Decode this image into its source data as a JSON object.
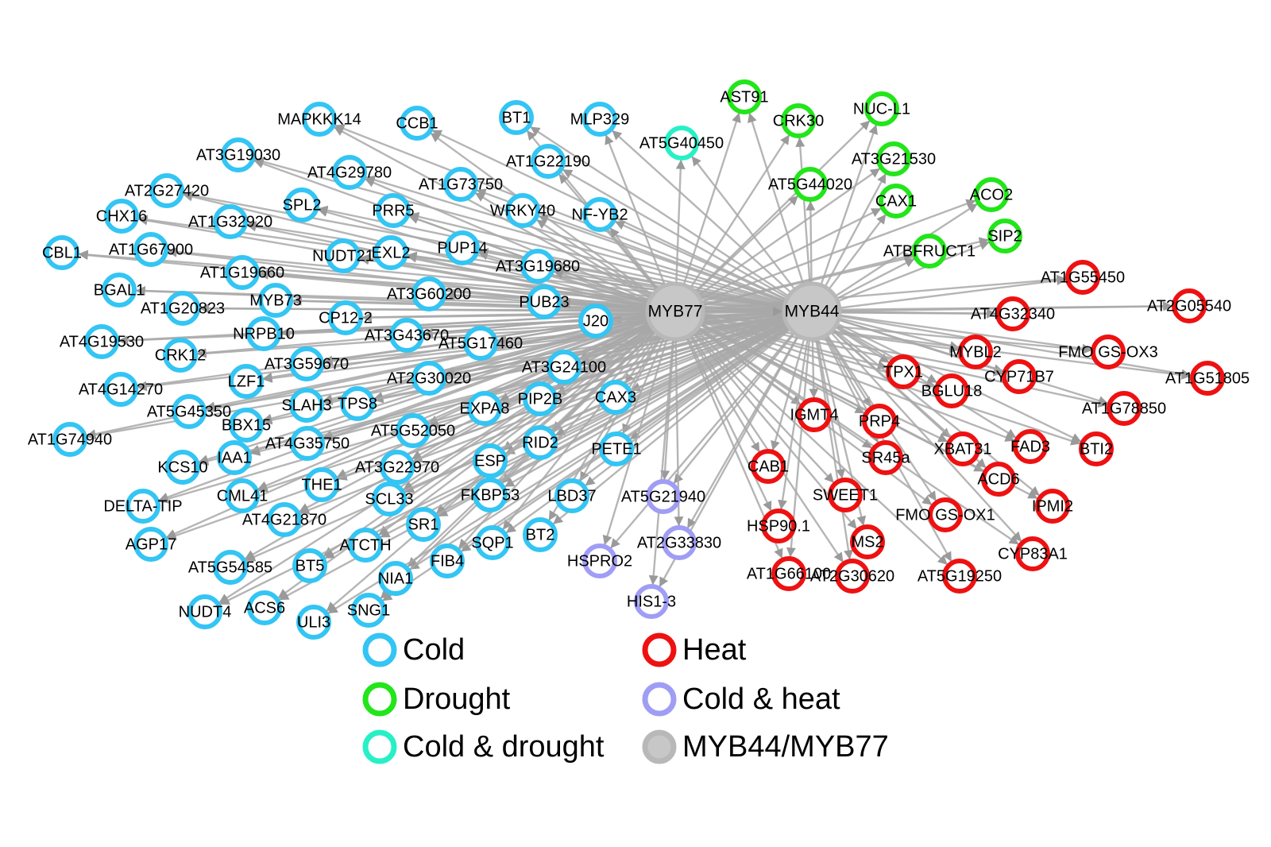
{
  "colors": {
    "Cold": "#33c5f3",
    "Drought": "#22e51a",
    "Cold & drought": "#27f0c6",
    "Heat": "#ee1111",
    "Cold & heat": "#a09df5",
    "MYB44/MYB77": "#c7c7c7",
    "edge": "#a8a8a8"
  },
  "hubs": [
    {
      "id": "MYB77",
      "label": "MYB77"
    },
    {
      "id": "MYB44",
      "label": "MYB44"
    }
  ],
  "legend": [
    {
      "label": "Cold",
      "category": "Cold"
    },
    {
      "label": "Heat",
      "category": "Heat"
    },
    {
      "label": "Drought",
      "category": "Drought"
    },
    {
      "label": "Cold & heat",
      "category": "Cold & heat"
    },
    {
      "label": "Cold & drought",
      "category": "Cold & drought"
    },
    {
      "label": "MYB44/MYB77",
      "category": "MYB44/MYB77"
    }
  ],
  "nodes": [
    {
      "label": "MAPKKK14",
      "category": "Cold"
    },
    {
      "label": "CCB1",
      "category": "Cold"
    },
    {
      "label": "BT1",
      "category": "Cold"
    },
    {
      "label": "MLP329",
      "category": "Cold"
    },
    {
      "label": "AT3G19030",
      "category": "Cold"
    },
    {
      "label": "AT4G29780",
      "category": "Cold"
    },
    {
      "label": "AT1G22190",
      "category": "Cold"
    },
    {
      "label": "AT1G73750",
      "category": "Cold"
    },
    {
      "label": "AT2G27420",
      "category": "Cold"
    },
    {
      "label": "CHX16",
      "category": "Cold"
    },
    {
      "label": "SPL2",
      "category": "Cold"
    },
    {
      "label": "PRR5",
      "category": "Cold"
    },
    {
      "label": "WRKY40",
      "category": "Cold"
    },
    {
      "label": "NF-YB2",
      "category": "Cold"
    },
    {
      "label": "AT1G32920",
      "category": "Cold"
    },
    {
      "label": "CBL1",
      "category": "Cold"
    },
    {
      "label": "AT1G67900",
      "category": "Cold"
    },
    {
      "label": "NUDT21",
      "category": "Cold"
    },
    {
      "label": "EXL2",
      "category": "Cold"
    },
    {
      "label": "PUP14",
      "category": "Cold"
    },
    {
      "label": "AT1G19660",
      "category": "Cold"
    },
    {
      "label": "AT3G19680",
      "category": "Cold"
    },
    {
      "label": "BGAL1",
      "category": "Cold"
    },
    {
      "label": "MYB73",
      "category": "Cold"
    },
    {
      "label": "AT3G60200",
      "category": "Cold"
    },
    {
      "label": "PUB23",
      "category": "Cold"
    },
    {
      "label": "AT1G20823",
      "category": "Cold"
    },
    {
      "label": "CP12-2",
      "category": "Cold"
    },
    {
      "label": "J20",
      "category": "Cold"
    },
    {
      "label": "AT4G19530",
      "category": "Cold"
    },
    {
      "label": "NRPB10",
      "category": "Cold"
    },
    {
      "label": "AT3G43670",
      "category": "Cold"
    },
    {
      "label": "CRK12",
      "category": "Cold"
    },
    {
      "label": "AT5G17460",
      "category": "Cold"
    },
    {
      "label": "AT3G59670",
      "category": "Cold"
    },
    {
      "label": "AT3G24100",
      "category": "Cold"
    },
    {
      "label": "AT4G14270",
      "category": "Cold"
    },
    {
      "label": "LZF1",
      "category": "Cold"
    },
    {
      "label": "AT2G30020",
      "category": "Cold"
    },
    {
      "label": "AT5G45350",
      "category": "Cold"
    },
    {
      "label": "SLAH3",
      "category": "Cold"
    },
    {
      "label": "TPS8",
      "category": "Cold"
    },
    {
      "label": "PIP2B",
      "category": "Cold"
    },
    {
      "label": "CAX3",
      "category": "Cold"
    },
    {
      "label": "EXPA8",
      "category": "Cold"
    },
    {
      "label": "BBX15",
      "category": "Cold"
    },
    {
      "label": "AT1G74940",
      "category": "Cold"
    },
    {
      "label": "AT5G52050",
      "category": "Cold"
    },
    {
      "label": "AT4G35750",
      "category": "Cold"
    },
    {
      "label": "RID2",
      "category": "Cold"
    },
    {
      "label": "PETE1",
      "category": "Cold"
    },
    {
      "label": "IAA1",
      "category": "Cold"
    },
    {
      "label": "KCS10",
      "category": "Cold"
    },
    {
      "label": "AT3G22970",
      "category": "Cold"
    },
    {
      "label": "ESP",
      "category": "Cold"
    },
    {
      "label": "THE1",
      "category": "Cold"
    },
    {
      "label": "CML41",
      "category": "Cold"
    },
    {
      "label": "DELTA-TIP",
      "category": "Cold"
    },
    {
      "label": "SCL33",
      "category": "Cold"
    },
    {
      "label": "FKBP53",
      "category": "Cold"
    },
    {
      "label": "LBD37",
      "category": "Cold"
    },
    {
      "label": "AT4G21870",
      "category": "Cold"
    },
    {
      "label": "SR1",
      "category": "Cold"
    },
    {
      "label": "AGP17",
      "category": "Cold"
    },
    {
      "label": "ATCTH",
      "category": "Cold"
    },
    {
      "label": "SQP1",
      "category": "Cold"
    },
    {
      "label": "BT2",
      "category": "Cold"
    },
    {
      "label": "AT5G54585",
      "category": "Cold"
    },
    {
      "label": "BT5",
      "category": "Cold"
    },
    {
      "label": "FIB4",
      "category": "Cold"
    },
    {
      "label": "NIA1",
      "category": "Cold"
    },
    {
      "label": "NUDT4",
      "category": "Cold"
    },
    {
      "label": "ACS6",
      "category": "Cold"
    },
    {
      "label": "SNG1",
      "category": "Cold"
    },
    {
      "label": "ULI3",
      "category": "Cold"
    },
    {
      "label": "AT5G40450",
      "category": "Cold & drought"
    },
    {
      "label": "AST91",
      "category": "Drought"
    },
    {
      "label": "CRK30",
      "category": "Drought"
    },
    {
      "label": "NUC-L1",
      "category": "Drought"
    },
    {
      "label": "AT3G21530",
      "category": "Drought"
    },
    {
      "label": "AT5G44020",
      "category": "Drought"
    },
    {
      "label": "CAX1",
      "category": "Drought"
    },
    {
      "label": "ACO2",
      "category": "Drought"
    },
    {
      "label": "SIP2",
      "category": "Drought"
    },
    {
      "label": "ATBFRUCT1",
      "category": "Drought"
    },
    {
      "label": "AT5G21940",
      "category": "Cold & heat"
    },
    {
      "label": "AT2G33830",
      "category": "Cold & heat"
    },
    {
      "label": "HSPRO2",
      "category": "Cold & heat"
    },
    {
      "label": "HIS1-3",
      "category": "Cold & heat"
    },
    {
      "label": "AT1G55450",
      "category": "Heat"
    },
    {
      "label": "AT4G32340",
      "category": "Heat"
    },
    {
      "label": "AT2G05540",
      "category": "Heat"
    },
    {
      "label": "MYBL2",
      "category": "Heat"
    },
    {
      "label": "FMO GS-OX3",
      "category": "Heat"
    },
    {
      "label": "TPX1",
      "category": "Heat"
    },
    {
      "label": "CYP71B7",
      "category": "Heat"
    },
    {
      "label": "AT1G51805",
      "category": "Heat"
    },
    {
      "label": "BGLU18",
      "category": "Heat"
    },
    {
      "label": "AT1G78850",
      "category": "Heat"
    },
    {
      "label": "IGMT4",
      "category": "Heat"
    },
    {
      "label": "PRP4",
      "category": "Heat"
    },
    {
      "label": "XBAT31",
      "category": "Heat"
    },
    {
      "label": "FAD3",
      "category": "Heat"
    },
    {
      "label": "BTI2",
      "category": "Heat"
    },
    {
      "label": "SR45a",
      "category": "Heat"
    },
    {
      "label": "CAB1",
      "category": "Heat"
    },
    {
      "label": "ACD6",
      "category": "Heat"
    },
    {
      "label": "SWEET1",
      "category": "Heat"
    },
    {
      "label": "FMO GS-OX1",
      "category": "Heat"
    },
    {
      "label": "IPMI2",
      "category": "Heat"
    },
    {
      "label": "HSP90.1",
      "category": "Heat"
    },
    {
      "label": "MS2",
      "category": "Heat"
    },
    {
      "label": "CYP83A1",
      "category": "Heat"
    },
    {
      "label": "AT1G66100",
      "category": "Heat"
    },
    {
      "label": "AT2G30620",
      "category": "Heat"
    },
    {
      "label": "AT5G19250",
      "category": "Heat"
    }
  ]
}
